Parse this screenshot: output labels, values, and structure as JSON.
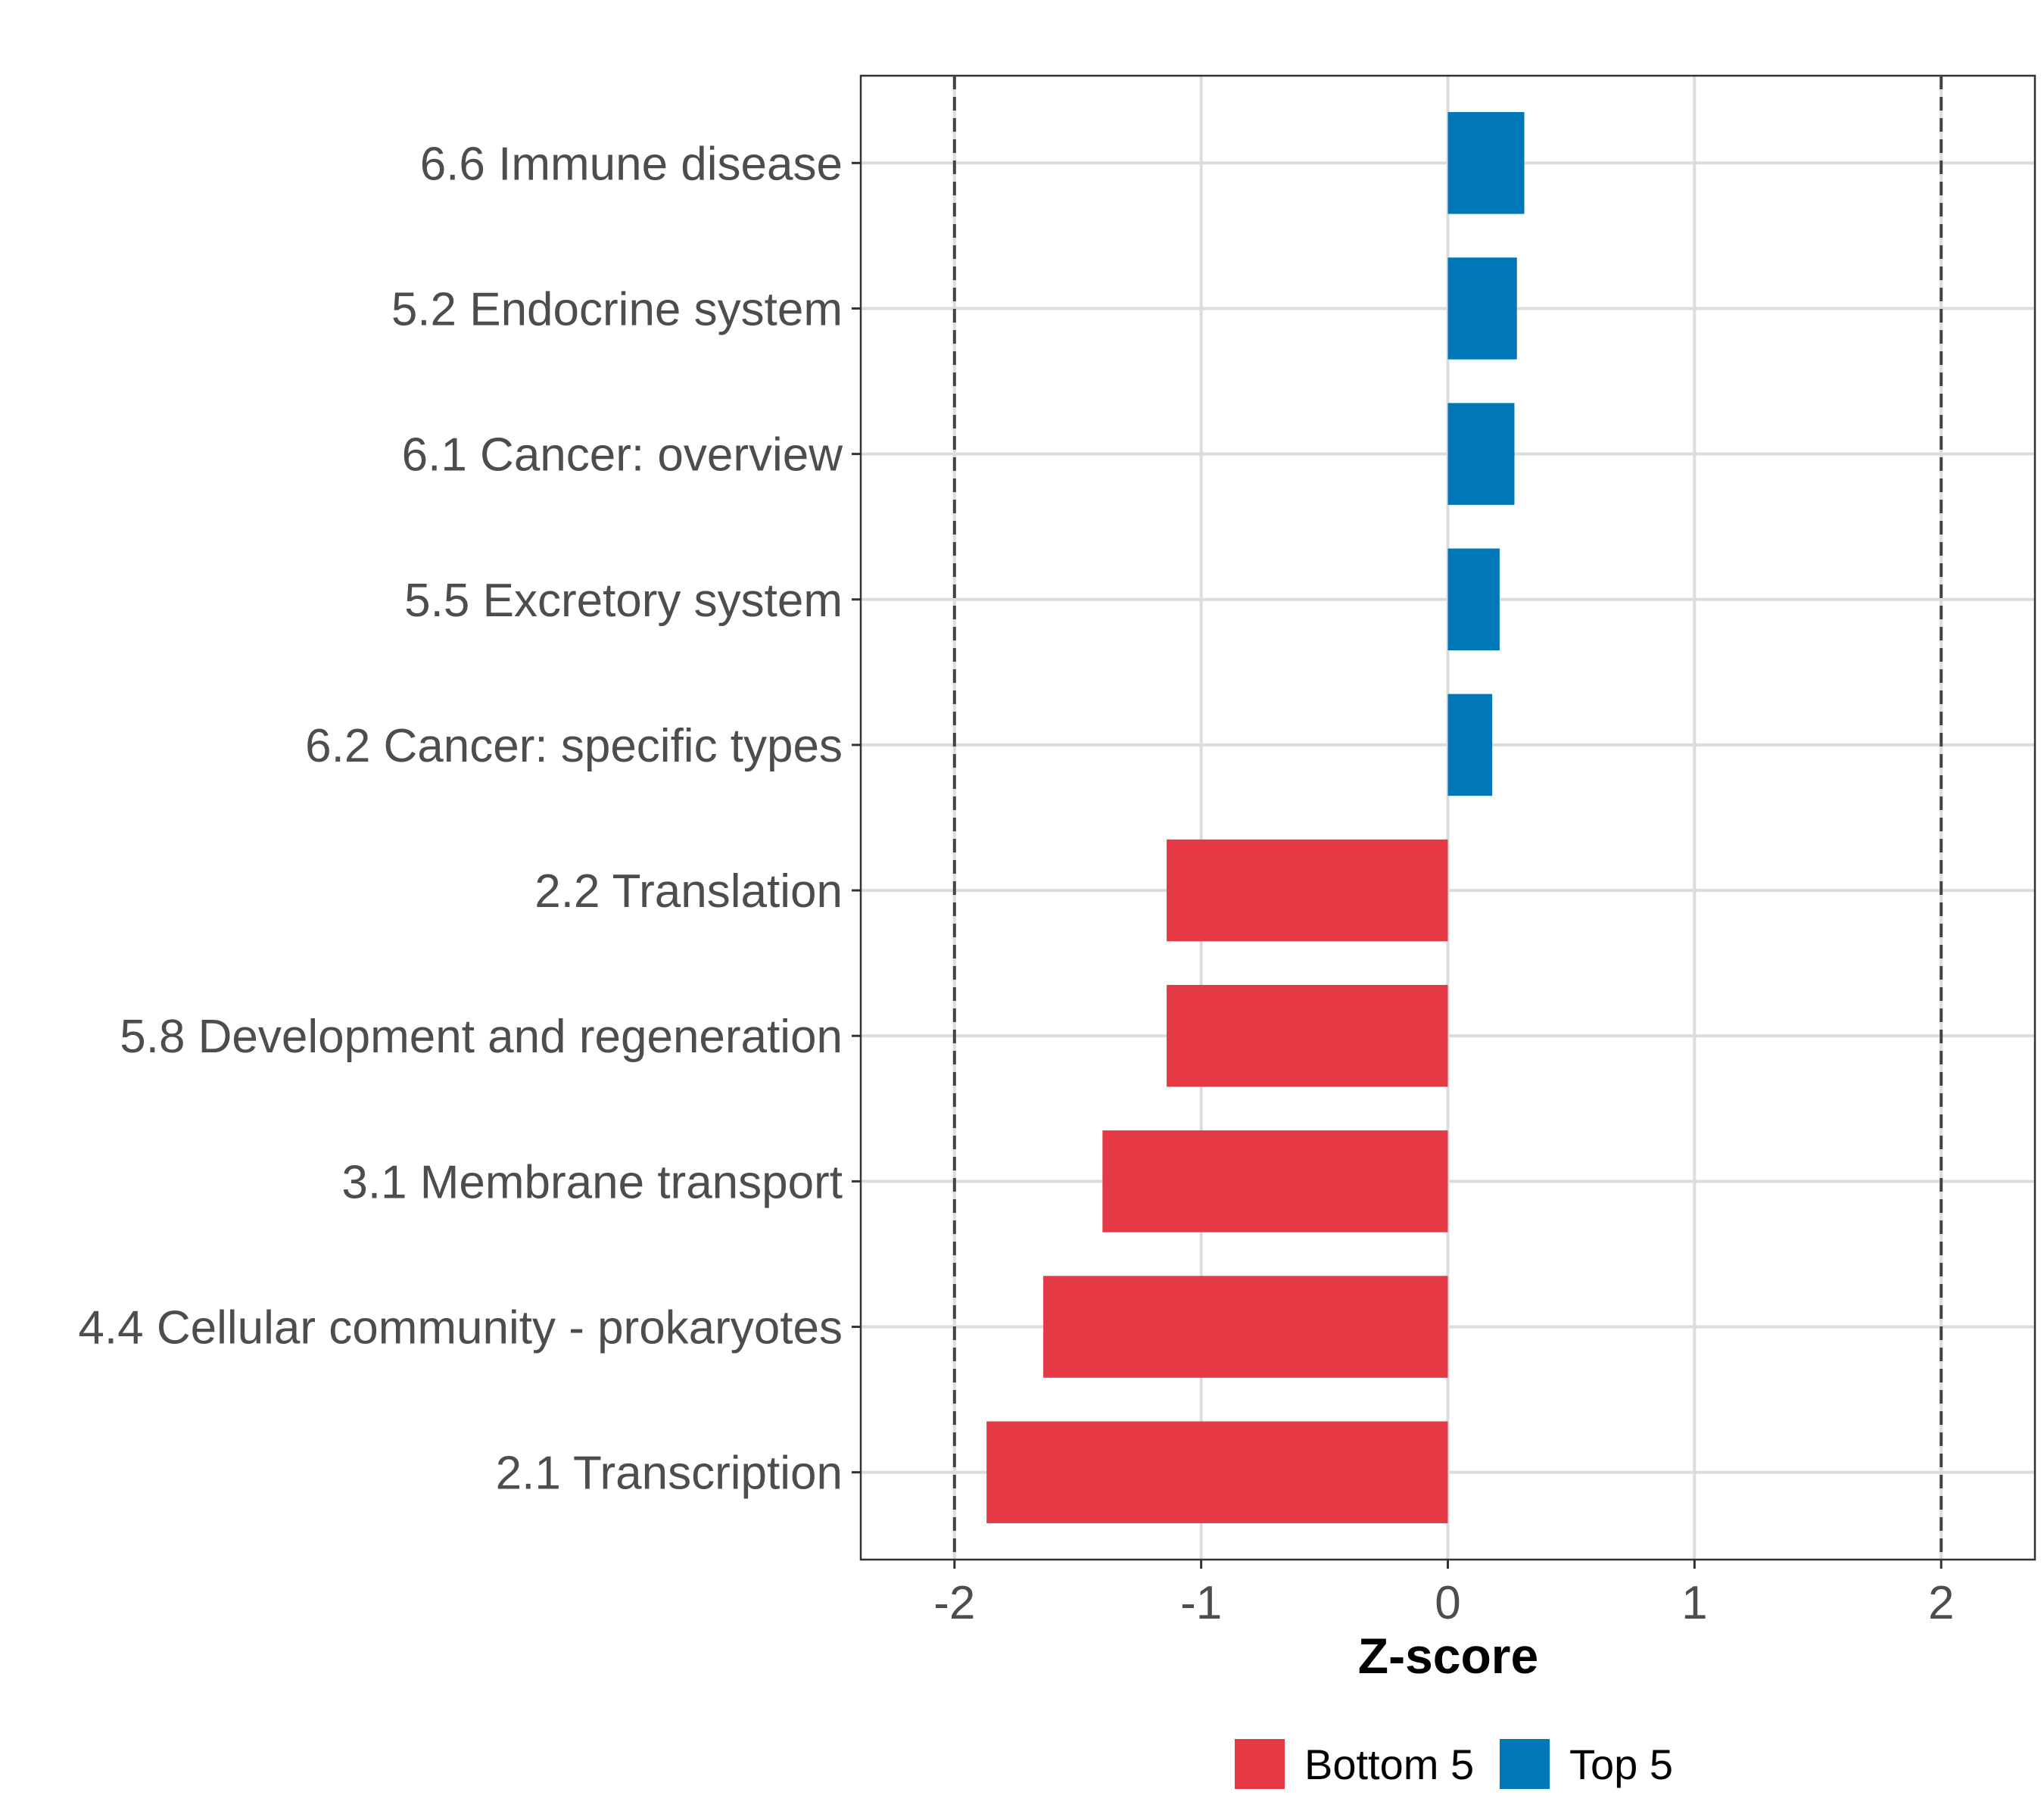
{
  "chart_data": {
    "type": "bar",
    "orientation": "horizontal",
    "title": "",
    "xlabel": "Z-score",
    "ylabel": "",
    "xlim": [
      -2.38,
      2.38
    ],
    "xticks": [
      -2,
      -1,
      0,
      1,
      2
    ],
    "xtick_labels": [
      "-2",
      "-1",
      "0",
      "1",
      "2"
    ],
    "reference_lines": [
      -2,
      2
    ],
    "grid": true,
    "legend_position": "bottom",
    "legend": [
      {
        "label": "Bottom 5",
        "color": "#E63946"
      },
      {
        "label": "Top 5",
        "color": "#0077B6"
      }
    ],
    "categories": [
      "6.6 Immune disease",
      "5.2 Endocrine system",
      "6.1 Cancer: overview",
      "5.5 Excretory system",
      "6.2 Cancer: specific types",
      "2.2 Translation",
      "5.8 Development and regeneration",
      "3.1 Membrane transport",
      "4.4 Cellular community - prokaryotes",
      "2.1 Transcription"
    ],
    "values": [
      0.31,
      0.28,
      0.27,
      0.21,
      0.18,
      -1.14,
      -1.14,
      -1.4,
      -1.64,
      -1.87
    ],
    "groups": [
      "Top 5",
      "Top 5",
      "Top 5",
      "Top 5",
      "Top 5",
      "Bottom 5",
      "Bottom 5",
      "Bottom 5",
      "Bottom 5",
      "Bottom 5"
    ]
  }
}
